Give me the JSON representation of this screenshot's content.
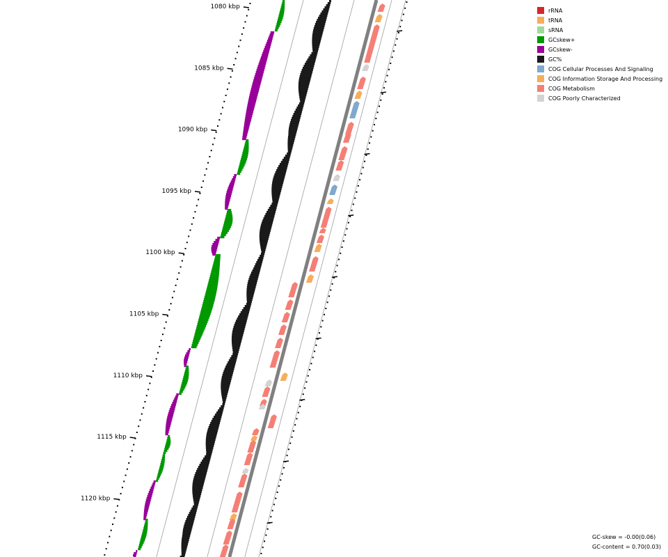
{
  "map": {
    "ticks": [
      {
        "label": "1080 kbp",
        "kbp": 1080
      },
      {
        "label": "1085 kbp",
        "kbp": 1085
      },
      {
        "label": "1090 kbp",
        "kbp": 1090
      },
      {
        "label": "1095 kbp",
        "kbp": 1095
      },
      {
        "label": "1100 kbp",
        "kbp": 1100
      },
      {
        "label": "1105 kbp",
        "kbp": 1105
      },
      {
        "label": "1110 kbp",
        "kbp": 1110
      },
      {
        "label": "1115 kbp",
        "kbp": 1115
      },
      {
        "label": "1120 kbp",
        "kbp": 1120
      }
    ],
    "colors": {
      "gc_skew_pos": "#009900",
      "gc_skew_neg": "#990099",
      "gc_content": "#1a1a1a",
      "backbone": "#808080",
      "guide": "#9e9e9e"
    }
  },
  "legend": [
    {
      "label": "rRNA",
      "color": "#d62728"
    },
    {
      "label": "tRNA",
      "color": "#f7ad5a"
    },
    {
      "label": "sRNA",
      "color": "#a1d99b"
    },
    {
      "label": "GCskew+",
      "color": "#009900"
    },
    {
      "label": "GCskew-",
      "color": "#990099"
    },
    {
      "label": "GC%",
      "color": "#1a1a1a"
    },
    {
      "label": "COG Cellular Processes And Signaling",
      "color": "#7fa9cf"
    },
    {
      "label": "COG Information Storage And Processing",
      "color": "#f7ad5a"
    },
    {
      "label": "COG Metabolism",
      "color": "#f57f75"
    },
    {
      "label": "COG Poorly Characterized",
      "color": "#d3d3d3"
    }
  ],
  "stats": {
    "gc_skew": "GC-skew = -0.00(0.06)",
    "gc_content": "GC-content = 0.70(0.03)"
  }
}
